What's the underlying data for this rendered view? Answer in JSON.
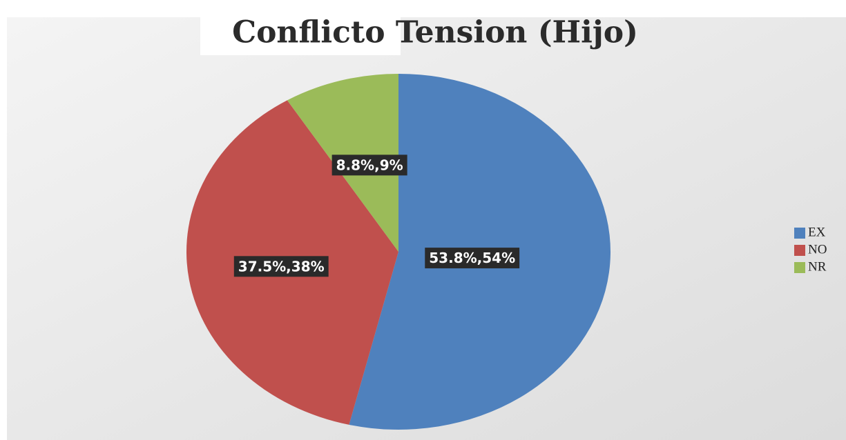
{
  "chart_data": {
    "type": "pie",
    "title": "Conflicto Tension (Hijo)",
    "categories": [
      "EX",
      "NO",
      "NR"
    ],
    "values": [
      53.8,
      37.5,
      8.8
    ],
    "value_labels": [
      "53.8%,54%",
      "37.5%,38%",
      "8.8%,9%"
    ],
    "colors": [
      "#4f81bd",
      "#c0504d",
      "#9bbb59"
    ],
    "legend": "right"
  }
}
